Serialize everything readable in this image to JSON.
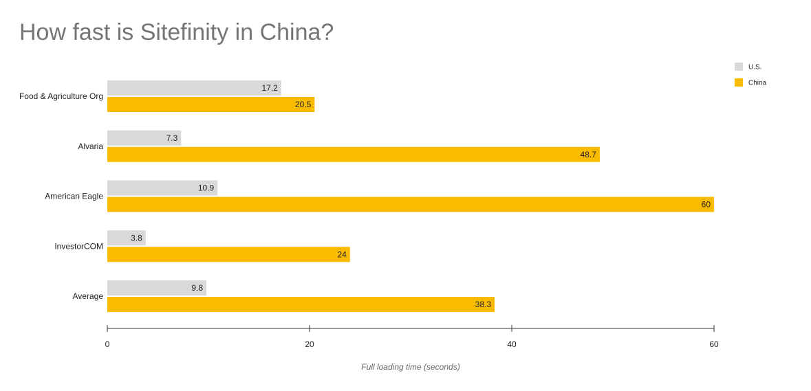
{
  "chart_data": {
    "type": "bar",
    "orientation": "horizontal",
    "title": "How fast is Sitefinity in China?",
    "xlabel": "Full loading time (seconds)",
    "ylabel": "",
    "categories": [
      "Food & Agriculture Org",
      "Alvaria",
      "American Eagle",
      "InvestorCOM",
      "Average"
    ],
    "series": [
      {
        "name": "U.S.",
        "color": "#d9d9d9",
        "values": [
          17.2,
          7.3,
          10.9,
          3.8,
          9.8
        ],
        "labels": [
          "17.2",
          "7.3",
          "10.9",
          "3.8",
          "9.8"
        ]
      },
      {
        "name": "China",
        "color": "#f9bb00",
        "values": [
          20.5,
          48.7,
          60,
          24,
          38.3
        ],
        "labels": [
          "20.5",
          "48.7",
          "60",
          "24",
          "38.3"
        ]
      }
    ],
    "xlim": [
      0,
      60
    ],
    "xticks": [
      0,
      20,
      40,
      60
    ],
    "xtick_labels": [
      "0",
      "20",
      "40",
      "60"
    ],
    "grid": false,
    "legend_position": "top-right"
  }
}
